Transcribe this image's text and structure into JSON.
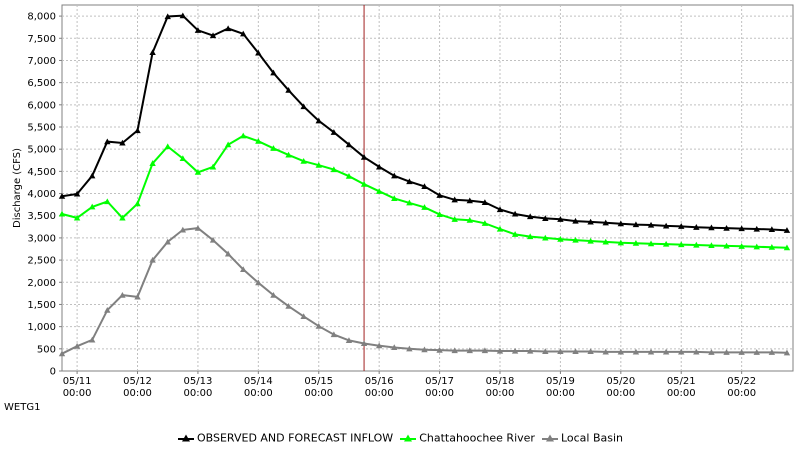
{
  "station_label": "WETG1",
  "chart_data": {
    "type": "line",
    "ylabel": "Discharge (CFS)",
    "xlabel": "",
    "ylim": [
      0,
      8250
    ],
    "yticks": [
      0,
      500,
      1000,
      1500,
      2000,
      2500,
      3000,
      3500,
      4000,
      4500,
      5000,
      5500,
      6000,
      6500,
      7000,
      7500,
      8000
    ],
    "ytick_labels": [
      "0",
      "500",
      "1,000",
      "1,500",
      "2,000",
      "2,500",
      "3,000",
      "3,500",
      "4,000",
      "4,500",
      "5,000",
      "5,500",
      "6,000",
      "6,500",
      "7,000",
      "7,500",
      "8,000"
    ],
    "x_unit": "days after 05/10 00:00",
    "xlim": [
      0.75,
      12.85
    ],
    "xticks": [
      {
        "x": 1,
        "date": "05/11",
        "time": "00:00"
      },
      {
        "x": 2,
        "date": "05/12",
        "time": "00:00"
      },
      {
        "x": 3,
        "date": "05/13",
        "time": "00:00"
      },
      {
        "x": 4,
        "date": "05/14",
        "time": "00:00"
      },
      {
        "x": 5,
        "date": "05/15",
        "time": "00:00"
      },
      {
        "x": 6,
        "date": "05/16",
        "time": "00:00"
      },
      {
        "x": 7,
        "date": "05/17",
        "time": "00:00"
      },
      {
        "x": 8,
        "date": "05/18",
        "time": "00:00"
      },
      {
        "x": 9,
        "date": "05/19",
        "time": "00:00"
      },
      {
        "x": 10,
        "date": "05/20",
        "time": "00:00"
      },
      {
        "x": 11,
        "date": "05/21",
        "time": "00:00"
      },
      {
        "x": 12,
        "date": "05/22",
        "time": "00:00"
      }
    ],
    "forecast_divider_x": 5.75,
    "grid": true,
    "legend_position": "bottom",
    "series": [
      {
        "name": "OBSERVED AND FORECAST INFLOW",
        "color": "#000000",
        "marker": "triangle",
        "x": [
          0.75,
          1.0,
          1.25,
          1.5,
          1.75,
          2.0,
          2.25,
          2.5,
          2.75,
          3.0,
          3.25,
          3.5,
          3.75,
          4.0,
          4.25,
          4.5,
          4.75,
          5.0,
          5.25,
          5.5,
          5.75,
          6.0,
          6.25,
          6.5,
          6.75,
          7.0,
          7.25,
          7.5,
          7.75,
          8.0,
          8.25,
          8.5,
          8.75,
          9.0,
          9.25,
          9.5,
          9.75,
          10.0,
          10.25,
          10.5,
          10.75,
          11.0,
          11.25,
          11.5,
          11.75,
          12.0,
          12.25,
          12.5,
          12.75
        ],
        "y": [
          3940,
          3990,
          4400,
          5170,
          5140,
          5420,
          7180,
          7990,
          8010,
          7680,
          7560,
          7720,
          7600,
          7170,
          6720,
          6330,
          5960,
          5640,
          5380,
          5100,
          4820,
          4600,
          4400,
          4270,
          4160,
          3960,
          3860,
          3840,
          3800,
          3640,
          3540,
          3480,
          3440,
          3420,
          3380,
          3360,
          3340,
          3320,
          3300,
          3290,
          3270,
          3260,
          3240,
          3230,
          3220,
          3210,
          3200,
          3190,
          3170
        ]
      },
      {
        "name": "Chattahoochee River",
        "color": "#00ff00",
        "marker": "triangle",
        "x": [
          0.75,
          1.0,
          1.25,
          1.5,
          1.75,
          2.0,
          2.25,
          2.5,
          2.75,
          3.0,
          3.25,
          3.5,
          3.75,
          4.0,
          4.25,
          4.5,
          4.75,
          5.0,
          5.25,
          5.5,
          5.75,
          6.0,
          6.25,
          6.5,
          6.75,
          7.0,
          7.25,
          7.5,
          7.75,
          8.0,
          8.25,
          8.5,
          8.75,
          9.0,
          9.25,
          9.5,
          9.75,
          10.0,
          10.25,
          10.5,
          10.75,
          11.0,
          11.25,
          11.5,
          11.75,
          12.0,
          12.25,
          12.5,
          12.75
        ],
        "y": [
          3540,
          3450,
          3700,
          3820,
          3450,
          3770,
          4680,
          5060,
          4790,
          4480,
          4600,
          5100,
          5300,
          5180,
          5020,
          4870,
          4730,
          4640,
          4540,
          4390,
          4210,
          4050,
          3890,
          3790,
          3690,
          3530,
          3420,
          3400,
          3330,
          3200,
          3080,
          3030,
          3000,
          2970,
          2950,
          2930,
          2910,
          2890,
          2880,
          2870,
          2860,
          2850,
          2840,
          2830,
          2820,
          2810,
          2800,
          2790,
          2780
        ]
      },
      {
        "name": "Local Basin",
        "color": "#808080",
        "marker": "triangle",
        "x": [
          0.75,
          1.0,
          1.25,
          1.5,
          1.75,
          2.0,
          2.25,
          2.5,
          2.75,
          3.0,
          3.25,
          3.5,
          3.75,
          4.0,
          4.25,
          4.5,
          4.75,
          5.0,
          5.25,
          5.5,
          5.75,
          6.0,
          6.25,
          6.5,
          6.75,
          7.0,
          7.25,
          7.5,
          7.75,
          8.0,
          8.25,
          8.5,
          8.75,
          9.0,
          9.25,
          9.5,
          9.75,
          10.0,
          10.25,
          10.5,
          10.75,
          11.0,
          11.25,
          11.5,
          11.75,
          12.0,
          12.25,
          12.5,
          12.75
        ],
        "y": [
          390,
          560,
          700,
          1370,
          1710,
          1670,
          2500,
          2910,
          3180,
          3220,
          2950,
          2640,
          2290,
          1990,
          1710,
          1460,
          1230,
          1010,
          820,
          690,
          620,
          570,
          530,
          500,
          480,
          470,
          460,
          460,
          460,
          450,
          450,
          450,
          440,
          440,
          440,
          440,
          430,
          430,
          430,
          430,
          430,
          430,
          430,
          420,
          420,
          420,
          420,
          420,
          410
        ]
      }
    ]
  }
}
